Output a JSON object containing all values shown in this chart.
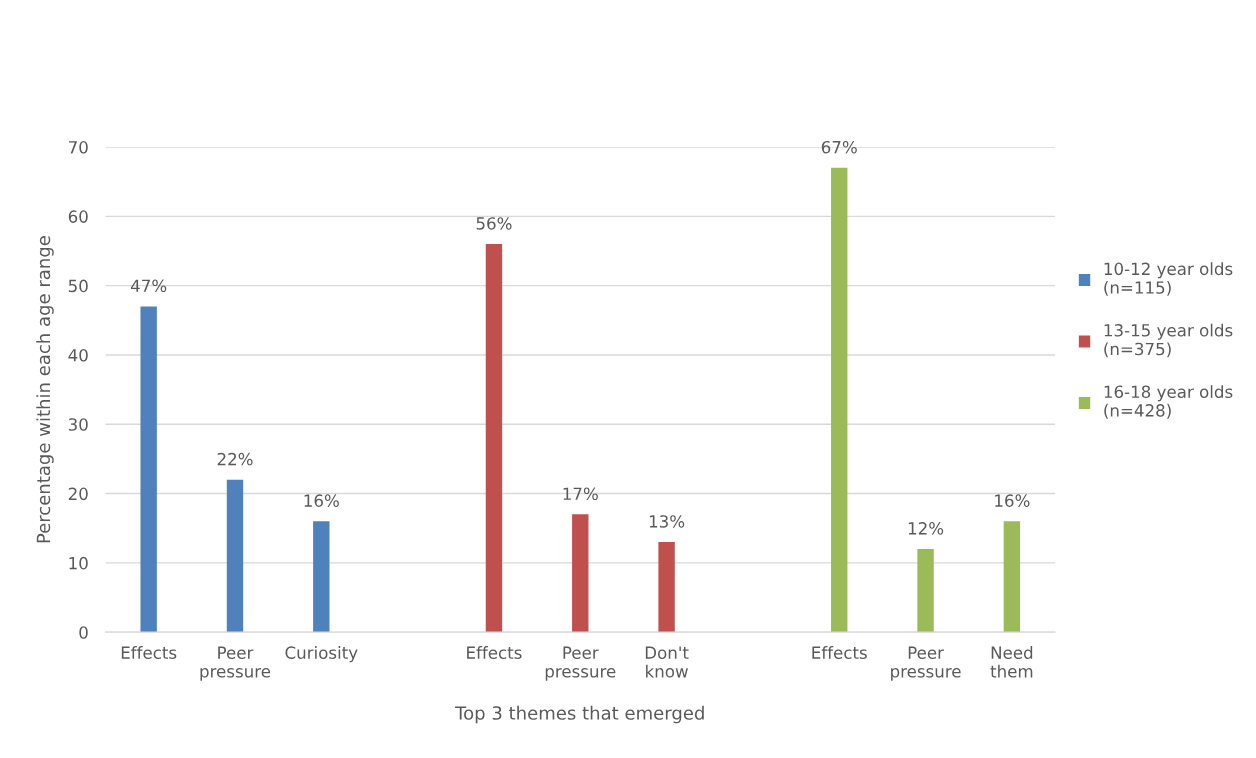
{
  "chart_data": {
    "type": "bar",
    "xlabel": "Top 3 themes that emerged",
    "ylabel": "Percentage within each age range",
    "categories": [
      "Effects",
      "Peer pressure",
      "Curiosity",
      null,
      "Effects",
      "Peer pressure",
      "Don't know",
      null,
      "Effects",
      "Peer pressure",
      "Need them"
    ],
    "series": [
      {
        "name": "10-12 year olds (n=115)",
        "color": "#4f81bd",
        "values": [
          47,
          22,
          16,
          null,
          null,
          null,
          null,
          null,
          null,
          null,
          null
        ],
        "value_labels": [
          "47%",
          "22%",
          "16%",
          null,
          null,
          null,
          null,
          null,
          null,
          null,
          null
        ]
      },
      {
        "name": "13-15 year olds (n=375)",
        "color": "#c0504d",
        "values": [
          null,
          null,
          null,
          null,
          56,
          17,
          13,
          null,
          null,
          null,
          null
        ],
        "value_labels": [
          null,
          null,
          null,
          null,
          "56%",
          "17%",
          "13%",
          null,
          null,
          null,
          null
        ]
      },
      {
        "name": "16-18 year olds (n=428)",
        "color": "#9bbb59",
        "values": [
          null,
          null,
          null,
          null,
          null,
          null,
          null,
          null,
          67,
          12,
          16
        ],
        "value_labels": [
          null,
          null,
          null,
          null,
          null,
          null,
          null,
          null,
          "67%",
          "12%",
          "16%"
        ]
      }
    ],
    "ylim": [
      0,
      70
    ],
    "yticks": [
      0,
      10,
      20,
      30,
      40,
      50,
      60,
      70
    ],
    "grid": "y",
    "legend": "right"
  }
}
